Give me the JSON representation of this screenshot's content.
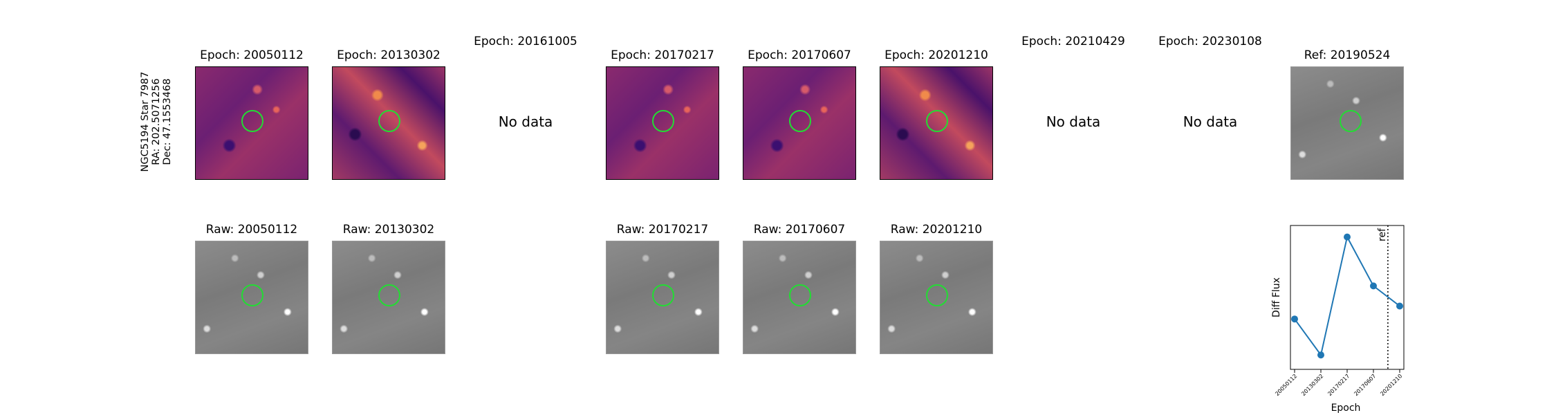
{
  "star_label": {
    "name": "NGC5194 Star 7987",
    "ra": "RA: 202.5071256",
    "dec": "Dec: 47.1553468"
  },
  "difference_row": [
    {
      "title": "Epoch: 20050112",
      "has_data": true
    },
    {
      "title": "Epoch: 20130302",
      "has_data": true
    },
    {
      "title": "Epoch: 20161005",
      "has_data": false
    },
    {
      "title": "Epoch: 20170217",
      "has_data": true
    },
    {
      "title": "Epoch: 20170607",
      "has_data": true
    },
    {
      "title": "Epoch: 20201210",
      "has_data": true
    },
    {
      "title": "Epoch: 20210429",
      "has_data": false
    },
    {
      "title": "Epoch: 20230108",
      "has_data": false
    }
  ],
  "no_data_text": "No data",
  "reference": {
    "title": "Ref: 20190524"
  },
  "raw_row": [
    {
      "title": "Raw: 20050112"
    },
    {
      "title": "Raw: 20130302"
    },
    {
      "title": "Raw: 20170217"
    },
    {
      "title": "Raw: 20170607"
    },
    {
      "title": "Raw: 20201210"
    }
  ],
  "colors": {
    "aperture": "#22dd33",
    "series": "#1f77b4"
  },
  "chart_data": {
    "type": "line",
    "categories": [
      "20050112",
      "20130302",
      "20170217",
      "20170607",
      "20201210"
    ],
    "values": [
      0.4,
      0.15,
      0.97,
      0.63,
      0.49
    ],
    "xlabel": "Epoch",
    "ylabel": "Diff Flux",
    "ylim": [
      0.05,
      1.05
    ],
    "grid": false,
    "reference_marker": {
      "label": "ref",
      "position_between": [
        "20170607",
        "20201210"
      ],
      "fraction": 0.55,
      "style": "dotted"
    }
  }
}
